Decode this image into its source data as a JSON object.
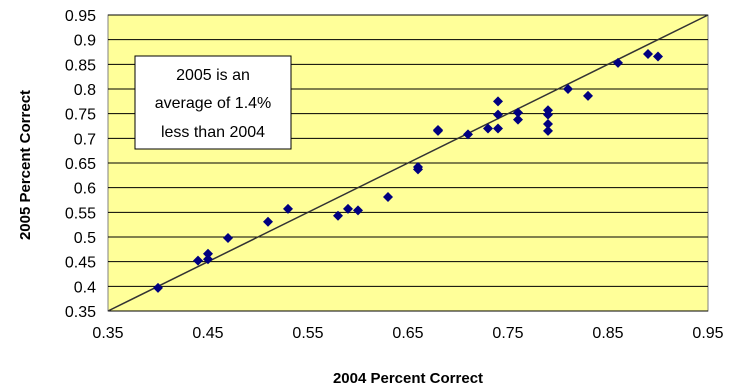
{
  "chart_data": {
    "type": "scatter",
    "title": "",
    "xlabel": "2004 Percent Correct",
    "ylabel": "2005 Percent Correct",
    "xlim": [
      0.35,
      0.95
    ],
    "ylim": [
      0.35,
      0.95
    ],
    "x_ticks": [
      "0.35",
      "0.45",
      "0.55",
      "0.65",
      "0.75",
      "0.85",
      "0.95"
    ],
    "y_ticks": [
      "0.35",
      "0.4",
      "0.45",
      "0.5",
      "0.55",
      "0.6",
      "0.65",
      "0.7",
      "0.75",
      "0.8",
      "0.85",
      "0.9",
      "0.95"
    ],
    "grid": "horizontal",
    "plot_background": "#ffff99",
    "marker_color": "#000080",
    "reference_line": {
      "from": [
        0.35,
        0.35
      ],
      "to": [
        0.95,
        0.95
      ],
      "color": "#333333"
    },
    "annotation": [
      "2005 is an",
      "average of 1.4%",
      "less than 2004"
    ],
    "points": [
      {
        "x": 0.4,
        "y": 0.397
      },
      {
        "x": 0.44,
        "y": 0.452
      },
      {
        "x": 0.45,
        "y": 0.455
      },
      {
        "x": 0.45,
        "y": 0.466
      },
      {
        "x": 0.47,
        "y": 0.498
      },
      {
        "x": 0.51,
        "y": 0.531
      },
      {
        "x": 0.53,
        "y": 0.557
      },
      {
        "x": 0.58,
        "y": 0.543
      },
      {
        "x": 0.59,
        "y": 0.557
      },
      {
        "x": 0.6,
        "y": 0.554
      },
      {
        "x": 0.63,
        "y": 0.581
      },
      {
        "x": 0.66,
        "y": 0.637
      },
      {
        "x": 0.66,
        "y": 0.642
      },
      {
        "x": 0.68,
        "y": 0.715
      },
      {
        "x": 0.68,
        "y": 0.717
      },
      {
        "x": 0.71,
        "y": 0.708
      },
      {
        "x": 0.73,
        "y": 0.72
      },
      {
        "x": 0.74,
        "y": 0.72
      },
      {
        "x": 0.74,
        "y": 0.748
      },
      {
        "x": 0.74,
        "y": 0.775
      },
      {
        "x": 0.76,
        "y": 0.738
      },
      {
        "x": 0.76,
        "y": 0.752
      },
      {
        "x": 0.79,
        "y": 0.715
      },
      {
        "x": 0.79,
        "y": 0.729
      },
      {
        "x": 0.79,
        "y": 0.748
      },
      {
        "x": 0.79,
        "y": 0.757
      },
      {
        "x": 0.81,
        "y": 0.8
      },
      {
        "x": 0.83,
        "y": 0.786
      },
      {
        "x": 0.86,
        "y": 0.853
      },
      {
        "x": 0.89,
        "y": 0.871
      },
      {
        "x": 0.9,
        "y": 0.866
      }
    ]
  }
}
